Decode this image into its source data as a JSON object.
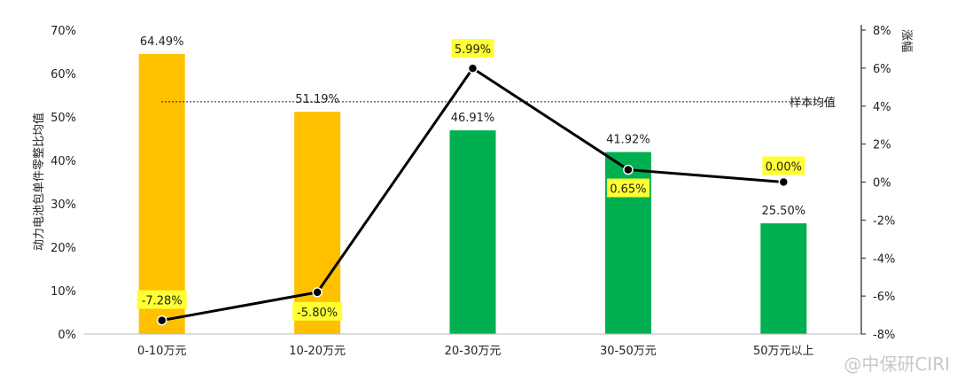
{
  "chart_data": {
    "type": "bar",
    "title": "",
    "categories": [
      "0-10万元",
      "10-20万元",
      "20-30万元",
      "30-50万元",
      "50万元以上"
    ],
    "series": [
      {
        "values": [
          64.49,
          51.19,
          46.91,
          41.92,
          25.5
        ],
        "labels": [
          "64.49%",
          "51.19%",
          "46.91%",
          "41.92%",
          "25.50%"
        ],
        "colors": [
          "#ffc000",
          "#ffc000",
          "#00b050",
          "#00b050",
          "#00b050"
        ]
      }
    ],
    "line_series": {
      "values": [
        -7.28,
        -5.8,
        5.99,
        0.65,
        0.0
      ],
      "labels": [
        "-7.28%",
        "-5.80%",
        "5.99%",
        "0.65%",
        "0.00%"
      ],
      "color": "#000000",
      "label_highlight": "#ffff33"
    },
    "reference_line": {
      "label": "样本均值",
      "value": 53.5
    },
    "ylabel": "动力电池包单件零整比均值",
    "y2label": "涨幅",
    "ylim": [
      0,
      70
    ],
    "y_ticks": [
      "0%",
      "10%",
      "20%",
      "30%",
      "40%",
      "50%",
      "60%",
      "70%"
    ],
    "y2lim": [
      -8,
      8
    ],
    "y2_ticks": [
      "-8%",
      "-6%",
      "-4%",
      "-2%",
      "0%",
      "2%",
      "4%",
      "6%",
      "8%"
    ],
    "grid": false,
    "legend": "none"
  },
  "watermark": "@中保研CIRI"
}
